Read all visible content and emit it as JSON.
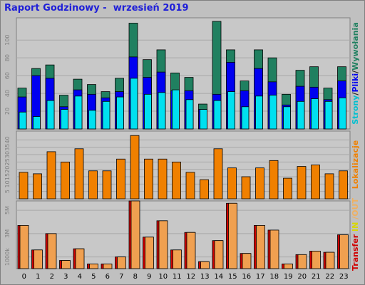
{
  "title": "Raport Godzinowy -  wrzesień 2019",
  "legend": {
    "hits": {
      "parts": [
        "Strony",
        "/",
        "Pliki",
        "/",
        "Wywołania"
      ],
      "colors": [
        "#00c0d0",
        "#202020",
        "#0000f0",
        "#202020",
        "#208060"
      ]
    },
    "visits": {
      "parts": [
        "Lokalizacje"
      ],
      "colors": [
        "#f08000"
      ]
    },
    "transfer": {
      "parts": [
        "Transfer",
        " ",
        "IN",
        " ",
        "/OUT"
      ],
      "colors": [
        "#d00000",
        "#202020",
        "#d8d800",
        "#202020",
        "#f0b060"
      ]
    }
  },
  "colors": {
    "background": "#c0c0c0",
    "plot": "#c8c8c8",
    "grid": "#a8a8a8",
    "hits": "#208060",
    "files": "#0000f0",
    "pages": "#00e0f0",
    "visits": "#f08000",
    "transfer_in": "#d00000",
    "transfer_out": "#f0a050",
    "title": "#1f1fd8"
  },
  "chart_data": [
    {
      "type": "bar",
      "title": "Raport Godzinowy -  wrzesień 2019",
      "ylabel": "Strony/Pliki/Wywołania",
      "categories": [
        "0",
        "1",
        "2",
        "3",
        "4",
        "5",
        "6",
        "7",
        "8",
        "9",
        "10",
        "11",
        "12",
        "13",
        "14",
        "15",
        "16",
        "17",
        "18",
        "19",
        "20",
        "21",
        "22",
        "23"
      ],
      "yticks": [
        "20",
        "40",
        "60",
        "80",
        "100"
      ],
      "ylim": [
        0,
        125
      ],
      "series": [
        {
          "name": "Wywołania",
          "values": [
            46,
            68,
            72,
            38,
            56,
            50,
            42,
            57,
            119,
            78,
            89,
            63,
            58,
            28,
            121,
            89,
            54,
            89,
            80,
            39,
            66,
            70,
            46,
            70
          ]
        },
        {
          "name": "Pliki",
          "values": [
            36,
            60,
            57,
            25,
            44,
            39,
            35,
            42,
            81,
            58,
            64,
            43,
            43,
            22,
            39,
            75,
            43,
            68,
            53,
            27,
            48,
            47,
            33,
            54
          ]
        },
        {
          "name": "Strony",
          "values": [
            19,
            14,
            32,
            22,
            37,
            21,
            31,
            36,
            57,
            39,
            41,
            44,
            33,
            22,
            32,
            42,
            25,
            37,
            38,
            25,
            31,
            34,
            31,
            35
          ]
        }
      ]
    },
    {
      "type": "bar",
      "ylabel": "Lokalizacje",
      "categories": [
        "0",
        "1",
        "2",
        "3",
        "4",
        "5",
        "6",
        "7",
        "8",
        "9",
        "10",
        "11",
        "12",
        "13",
        "14",
        "15",
        "16",
        "17",
        "18",
        "19",
        "20",
        "21",
        "22",
        "23"
      ],
      "yticks": [
        "5",
        "10",
        "15",
        "20",
        "25",
        "30",
        "35",
        "40"
      ],
      "ylim": [
        0,
        46
      ],
      "series": [
        {
          "name": "Lokalizacje",
          "values": [
            18,
            17,
            32,
            25,
            34,
            19,
            19,
            27,
            43,
            27,
            27,
            25,
            18,
            13,
            34,
            21,
            15,
            21,
            26,
            14,
            22,
            23,
            17,
            19
          ]
        }
      ]
    },
    {
      "type": "bar",
      "ylabel": "Transfer IN /OUT",
      "categories": [
        "0",
        "1",
        "2",
        "3",
        "4",
        "5",
        "6",
        "7",
        "8",
        "9",
        "10",
        "11",
        "12",
        "13",
        "14",
        "15",
        "16",
        "17",
        "18",
        "19",
        "20",
        "21",
        "22",
        "23"
      ],
      "yticks": [
        "1000k",
        "3M",
        "5M"
      ],
      "ylim": [
        0,
        5.8
      ],
      "series": [
        {
          "name": "IN",
          "values": [
            3.7,
            1.6,
            3.0,
            0.7,
            1.7,
            0.4,
            0.4,
            1.0,
            5.8,
            2.7,
            4.1,
            1.6,
            3.1,
            0.6,
            2.4,
            5.6,
            1.3,
            3.7,
            3.3,
            0.4,
            1.2,
            1.5,
            1.4,
            2.9
          ]
        },
        {
          "name": "OUT",
          "values": [
            3.7,
            1.6,
            3.0,
            0.7,
            1.7,
            0.4,
            0.4,
            1.0,
            5.8,
            2.7,
            4.1,
            1.6,
            3.1,
            0.6,
            2.4,
            5.6,
            1.3,
            3.7,
            3.3,
            0.4,
            1.2,
            1.5,
            1.4,
            2.9
          ]
        }
      ]
    }
  ]
}
